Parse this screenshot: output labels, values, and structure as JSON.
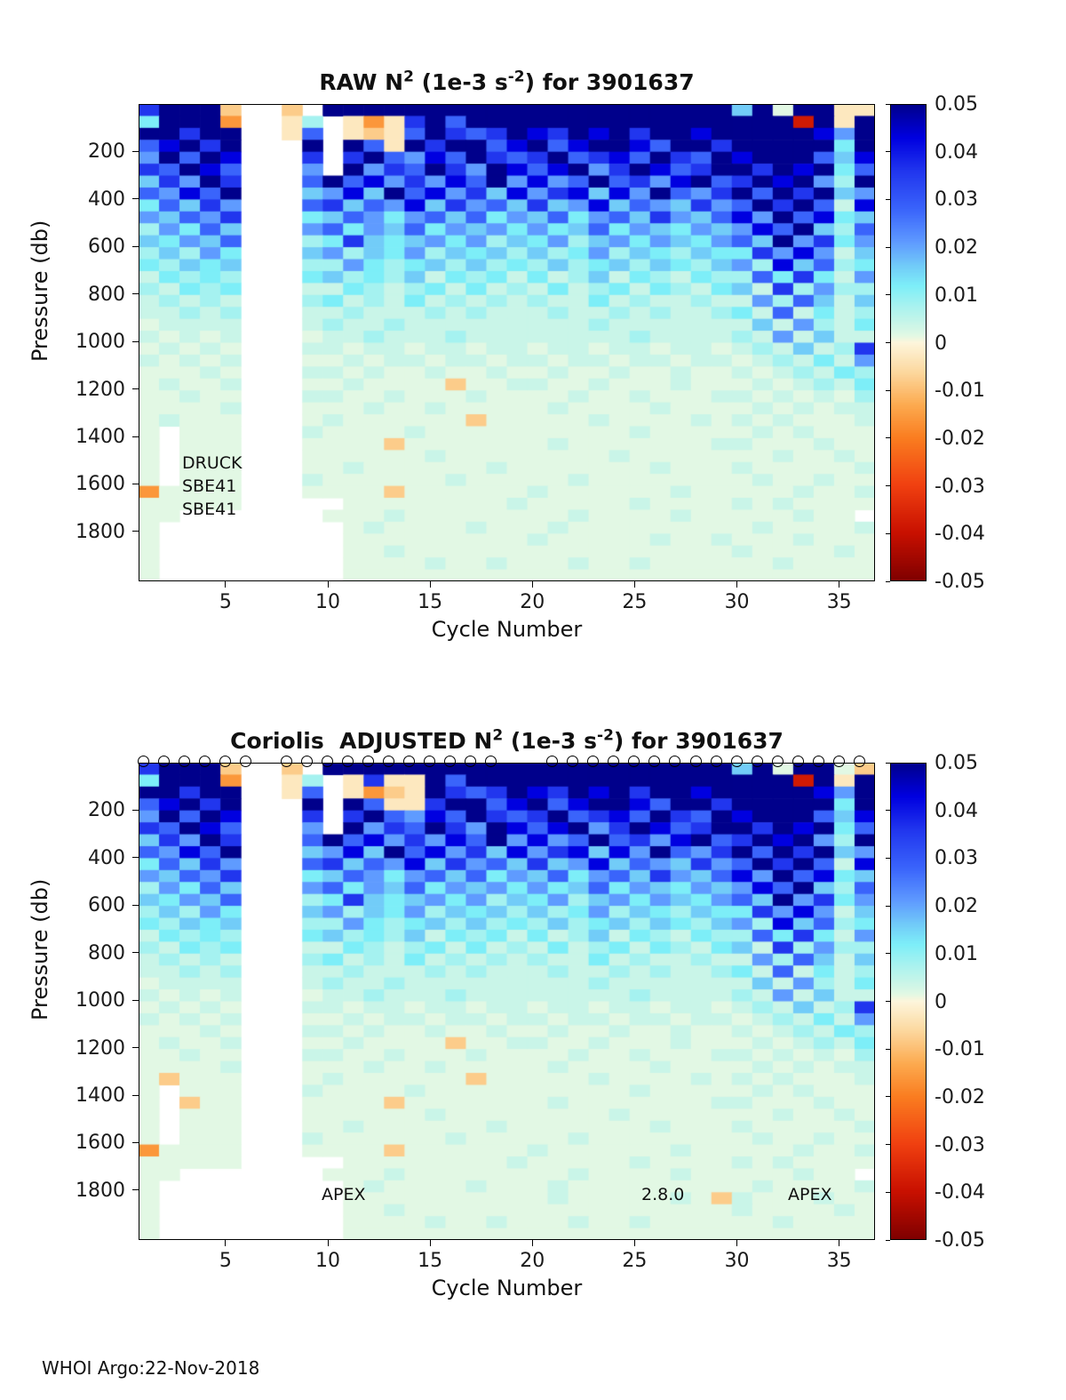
{
  "figure": {
    "footer": "WHOI Argo:22-Nov-2018"
  },
  "axes": {
    "ylabel": "Pressure (db)",
    "xlabel": "Cycle Number",
    "xticks": [
      "5",
      "10",
      "15",
      "20",
      "25",
      "30",
      "35"
    ],
    "xtick_cycles": [
      5,
      10,
      15,
      20,
      25,
      30,
      35
    ],
    "yticks": [
      "200",
      "400",
      "600",
      "800",
      "1000",
      "1200",
      "1400",
      "1600",
      "1800"
    ],
    "ytick_db": [
      200,
      400,
      600,
      800,
      1000,
      1200,
      1400,
      1600,
      1800
    ],
    "pressure_range_db": [
      0,
      2010
    ],
    "cycle_range": [
      1,
      36
    ]
  },
  "annotations": {
    "sensor_lines": [
      "DRUCK",
      "SBE41",
      "SBE41"
    ],
    "firmware": [
      "APEX",
      "2.8.0",
      "APEX"
    ]
  },
  "chart_data": [
    {
      "type": "heatmap",
      "panel": "top",
      "title_parts": [
        [
          "RAW N",
          false
        ],
        [
          "2",
          true
        ],
        [
          " (1e-3 s",
          false
        ],
        [
          "-2",
          true
        ],
        [
          ") for 3901637",
          false
        ]
      ],
      "xlabel": "Cycle Number",
      "ylabel": "Pressure (db)",
      "value_units": "1e-3 s^-2",
      "colorbar_ticks": [
        "0.05",
        "0.04",
        "0.03",
        "0.02",
        "0.01",
        "0",
        "-0.01",
        "-0.02",
        "-0.03",
        "-0.04",
        "-0.05"
      ],
      "colorbar_range": [
        -0.05,
        0.05
      ],
      "n_cycles": 36,
      "pressure_bin_db": 50,
      "levels": {
        "0": 0.0015,
        "1": 0.004,
        "2": 0.008,
        "3": 0.012,
        "4": 0.016,
        "5": 0.021,
        "6": 0.028,
        "7": 0.036,
        "8": 0.043,
        "9": 0.05,
        "a": -0.003,
        "b": -0.008,
        "c": -0.016,
        "d": -0.038,
        "e": -0.048
      },
      "missing_char": ".",
      "grid": [
        "7999b..b.9999999999999999999949099aa",
        "3999c..a2.aca7969999999999999999d9a9",
        "99799..a6.aba69767987989799899999859",
        "68979...9.96a97996896899869979999939",
        "59698...7.79658697679678697698999648",
        "76986...5.95769759868957986799798936",
        "47597...6968575869585696758967989529",
        "65869...4584968574857848596579697945",
        "36475...6746584756474584654756979618",
        "54657...3465356463546356475468596834",
        "25364...5635463545353463543545869426",
        "43546...2374345352435245354356495735",
        "24253...4524352434242352432433758514",
        "32434...2253234242324234243245284623",
        "13232...3423241323131241321322637315",
        "21323...1132123131213123132134172522",
        "12121...2312131212121131211211526414",
        "11212...1121112121112112121123161312",
        "01111...1211211111111121111111415213",
        "10101...0112111211111111211112151411",
        "01010...1101101101101101101101214127",
        "10101...0010110110110110110110121315",
        "00010...1101001001001001001001012132",
        "01001...0010000b00110010001000101213",
        "00100...1100100010000100100011010102",
        "00001...0001001000001000010000101011",
        "01000...01000000b0000010000101010001",
        "0.000...1000010000000000100000101000",
        "0.000...0000b00000001000000011000100",
        "0.000...0000001000000001000000010010",
        "0.000...0010000001000000010001000001",
        "0.000...1000000100000100000000100100",
        "c0000...0000b00000010000001000001001",
        "00000.....00000000100000100001010000",
        "00.......0001000000001000010 0000100",
        "0.........0100001000100000000 0100001",
        "0.........0000000001000001001 0001000",
        "0.........0010000000000000000 1000010",
        "0.........0000100100010010000 0010000",
        "0.........0000000000000000000 0000000"
      ]
    },
    {
      "type": "heatmap",
      "panel": "bottom",
      "title_parts": [
        [
          "Coriolis  ADJUSTED N",
          false
        ],
        [
          "2",
          true
        ],
        [
          " (1e-3 s",
          false
        ],
        [
          "-2",
          true
        ],
        [
          ") for 3901637",
          false
        ]
      ],
      "xlabel": "Cycle Number",
      "ylabel": "Pressure (db)",
      "value_units": "1e-3 s^-2",
      "colorbar_ticks": [
        "0.05",
        "0.04",
        "0.03",
        "0.02",
        "0.01",
        "0",
        "-0.01",
        "-0.02",
        "-0.03",
        "-0.04",
        "-0.05"
      ],
      "colorbar_range": [
        -0.05,
        0.05
      ],
      "n_cycles": 36,
      "pressure_bin_db": 50,
      "levels": {
        "0": 0.0015,
        "1": 0.004,
        "2": 0.008,
        "3": 0.012,
        "4": 0.016,
        "5": 0.021,
        "6": 0.028,
        "7": 0.036,
        "8": 0.043,
        "9": 0.05,
        "a": -0.003,
        "b": -0.008,
        "c": -0.016,
        "d": -0.038,
        "e": -0.048
      },
      "missing_char": ".",
      "marker_cycles": [
        1,
        2,
        3,
        4,
        5,
        6,
        8,
        9,
        10,
        11,
        12,
        13,
        14,
        15,
        16,
        17,
        18,
        21,
        22,
        23,
        24,
        25,
        26,
        27,
        28,
        29,
        30,
        31,
        32,
        33,
        34,
        35,
        36
      ],
      "grid": [
        "7999b..b.99999999999999999999490990b",
        "3999c..a2.a7aa969999999999999999d9a9",
        "99799..a6.acba97679879897998999998 59",
        "68979...9.96aa79968968998699799999 39",
        "59698...7.79658697679678697698999648",
        "76986...5.95769759868957986799798936",
        "47597...6968575869585696758967989529",
        "65869...4584968574857848596579697945",
        "36475...6746584756474584654756979618",
        "54657...3465356463546356475468596834",
        "25364...5635463545353463543545869426",
        "43546...2374345352435245354356495735",
        "24253...4524352434242352432433758514",
        "32434...2253234242324234243245284623",
        "13232...3423241323131241321322637315",
        "21323...1132123131213123132134172522",
        "12121...2312131212121131211211526414",
        "11212...1121112121112112121123161312",
        "01111...1211211111111121111111415213",
        "10101...0112111211111111211112151411",
        "01010...1101101101101101101101214127",
        "10101...0010110110110110110110121315",
        "00010...1101001001001001001001012132",
        "01001...0010000b00110010001000101213",
        "00100...1100100010000100100011010102",
        "00001...0001001000001000010000101011",
        "0b000...01000000b0000010000101010001",
        "0.000...1000010000000000100000101000",
        "0.b00...0000b00000001000000011000100",
        "0.000...0000001000000001000000010010",
        "0.000...0010000001000000010001000001",
        "0.000...1000000100000100000000100100",
        "c0000...0000b00000010000001000001001",
        "00000.....00000000100000100001010000",
        "00.......0001000000001000010 0000100",
        "0.........0100001000100000000 0100001",
        "0.........000000000010000010b1 0001000",
        "0.........0010000000000000000 1000010",
        "0.........0000100100010010000 0010000",
        "0.........0000000000000000000 0000000"
      ]
    }
  ]
}
